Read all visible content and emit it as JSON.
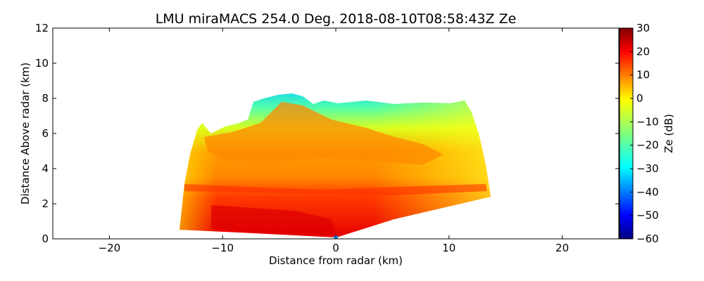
{
  "chart_data": {
    "type": "heatmap",
    "title": "LMU miraMACS 254.0 Deg. 2018-08-10T08:58:43Z  Ze",
    "xlabel": "Distance from radar (km)",
    "ylabel": "Distance Above radar  (km)",
    "xlim": [
      -25,
      25
    ],
    "ylim": [
      0,
      12
    ],
    "xticks": [
      -20,
      -10,
      0,
      10,
      20
    ],
    "xtick_labels": [
      "−20",
      "−10",
      "0",
      "10",
      "20"
    ],
    "yticks": [
      0,
      2,
      4,
      6,
      8,
      10,
      12
    ],
    "ytick_labels": [
      "0",
      "2",
      "4",
      "6",
      "8",
      "10",
      "12"
    ],
    "colorbar": {
      "label": "Ze (dB)",
      "range": [
        -60,
        30
      ],
      "ticks": [
        30,
        20,
        10,
        0,
        -10,
        -20,
        -30,
        -40,
        -50,
        -60
      ],
      "tick_labels": [
        "30",
        "20",
        "10",
        "0",
        "−10",
        "−20",
        "−30",
        "−40",
        "−50",
        "−60"
      ],
      "colormap": "jet",
      "colors": [
        "#00007f",
        "#0000ff",
        "#007fff",
        "#00ffff",
        "#7fff7f",
        "#ffff00",
        "#ff7f00",
        "#ff0000",
        "#7f0000"
      ]
    },
    "scan": {
      "azimuth_deg": 254.0,
      "max_range_km": 14,
      "radar_position_km": [
        0,
        0
      ],
      "cloud_top_profile": [
        [
          -12.8,
          6.5
        ],
        [
          -10,
          5.8
        ],
        [
          -7.5,
          6.8
        ],
        [
          -6.5,
          8.0
        ],
        [
          -4,
          8.2
        ],
        [
          -2,
          7.3
        ],
        [
          0,
          7.6
        ],
        [
          4,
          7.8
        ],
        [
          8,
          7.4
        ],
        [
          11,
          7.6
        ],
        [
          13,
          6.2
        ]
      ],
      "reflectivity_regions": [
        {
          "name": "cloud-top edge",
          "ze_dB": -25
        },
        {
          "name": "upper cloud layer",
          "ze_dB": -8
        },
        {
          "name": "mid cloud layer",
          "ze_dB": 14
        },
        {
          "name": "melting layer",
          "ze_dB": 22
        },
        {
          "name": "lower precipitation",
          "ze_dB": 20
        },
        {
          "name": "core near radar",
          "ze_dB": 27
        }
      ]
    }
  }
}
